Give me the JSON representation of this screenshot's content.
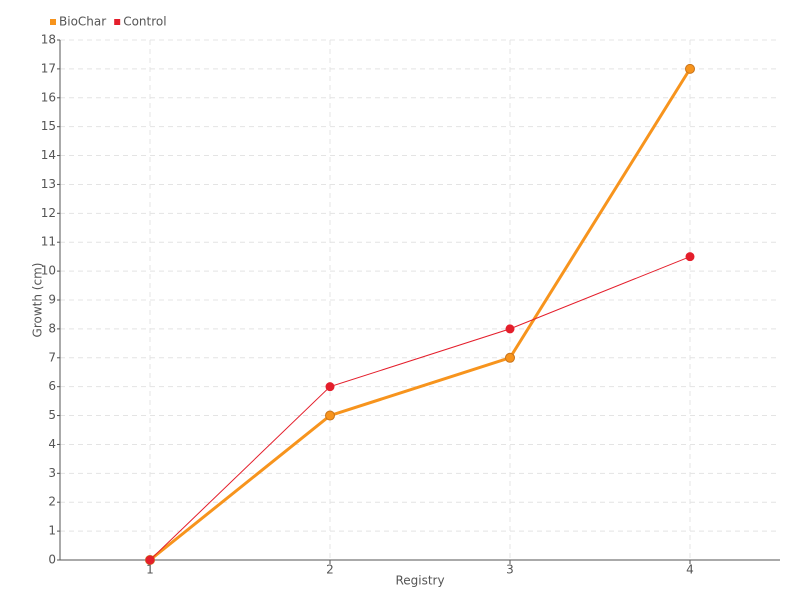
{
  "chart_data": {
    "type": "line",
    "x": [
      1,
      2,
      3,
      4
    ],
    "xlim": [
      0.5,
      4.5
    ],
    "xticks": [
      1,
      2,
      3,
      4
    ],
    "ylim": [
      0,
      18
    ],
    "yticks": [
      0,
      1,
      2,
      3,
      4,
      5,
      6,
      7,
      8,
      9,
      10,
      11,
      12,
      13,
      14,
      15,
      16,
      17,
      18
    ],
    "x_label": "Registry",
    "y_label": "Growth (cm)",
    "grid": true,
    "legend": "top-left",
    "series": [
      {
        "name": "BioChar",
        "color": "#f7941d",
        "values": [
          0,
          5,
          7,
          17
        ]
      },
      {
        "name": "Control",
        "color": "#e41e2b",
        "values": [
          0,
          6,
          8,
          10.5
        ]
      }
    ]
  }
}
